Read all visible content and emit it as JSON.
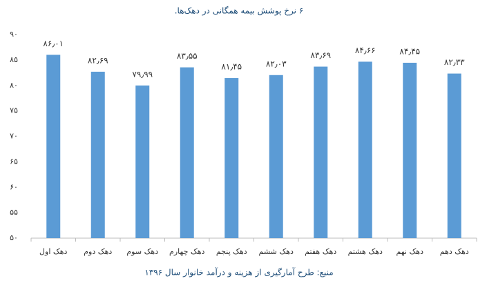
{
  "chart_data": {
    "type": "bar",
    "title": "۶ نرخ پوشش بیمه همگانی در دهک‌ها.",
    "source": "منبع: طرح آمارگیری از هزینه و درآمد خانوار سال ۱۳۹۶",
    "categories": [
      "دهک اول",
      "دهک دوم",
      "دهک سوم",
      "دهک چهارم",
      "دهک پنجم",
      "دهک ششم",
      "دهک هفتم",
      "دهک هشتم",
      "دهک نهم",
      "دهک دهم"
    ],
    "values": [
      86.01,
      82.69,
      79.99,
      83.55,
      81.45,
      82.03,
      83.69,
      84.66,
      84.45,
      82.33
    ],
    "value_labels": [
      "۸۶٫۰۱",
      "۸۲٫۶۹",
      "۷۹٫۹۹",
      "۸۳٫۵۵",
      "۸۱٫۴۵",
      "۸۲٫۰۳",
      "۸۳٫۶۹",
      "۸۴٫۶۶",
      "۸۴٫۴۵",
      "۸۲٫۳۳"
    ],
    "color": "#5b9bd5",
    "ylim": [
      50,
      90
    ],
    "yticks": [
      {
        "value": 50,
        "label": "۵۰"
      },
      {
        "value": 55,
        "label": "۵۵"
      },
      {
        "value": 60,
        "label": "۶۰"
      },
      {
        "value": 65,
        "label": "۶۵"
      },
      {
        "value": 70,
        "label": "۷۰"
      },
      {
        "value": 75,
        "label": "۷۵"
      },
      {
        "value": 80,
        "label": "۸۰"
      },
      {
        "value": 85,
        "label": "۸۵"
      },
      {
        "value": 90,
        "label": "۹۰"
      }
    ],
    "grid": false
  }
}
